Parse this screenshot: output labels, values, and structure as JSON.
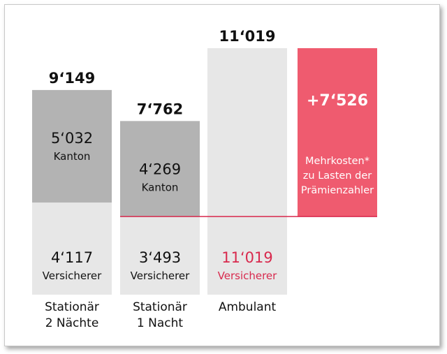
{
  "chart_data": {
    "type": "bar",
    "subtype": "stacked",
    "title": "",
    "xlabel": "",
    "ylabel": "",
    "categories": [
      [
        "Stationär",
        "2 Nächte"
      ],
      [
        "Stationär",
        "1 Nacht"
      ],
      [
        "Ambulant"
      ],
      [
        ""
      ]
    ],
    "series": [
      {
        "name": "Versicherer",
        "values": [
          4117,
          3493,
          11019,
          null
        ],
        "value_labels": [
          "4‘117",
          "3‘493",
          "11‘019",
          ""
        ],
        "label": "Versicherer"
      },
      {
        "name": "Kanton",
        "values": [
          5032,
          4269,
          null,
          null
        ],
        "value_labels": [
          "5‘032",
          "4‘269",
          "",
          ""
        ],
        "label": "Kanton"
      }
    ],
    "totals": {
      "values": [
        9149,
        7762,
        11019,
        null
      ],
      "labels": [
        "9‘149",
        "7‘762",
        "11‘019",
        ""
      ]
    },
    "difference": {
      "value": 7526,
      "label": "+7‘526",
      "text_lines": [
        "Mehrkosten*",
        "zu Lasten der",
        "Prämienzahler"
      ],
      "base": 3493,
      "top": 11019
    },
    "reference_line": {
      "value": 3493
    },
    "ylim": [
      0,
      11019
    ],
    "grid": false,
    "legend": "none"
  },
  "colors": {
    "kanton": "#b3b3b3",
    "versicherer": "#e7e7e7",
    "accent": "#d8294d",
    "difference": "#ef5b6f",
    "text": "#111111",
    "white_text": "#ffffff"
  }
}
